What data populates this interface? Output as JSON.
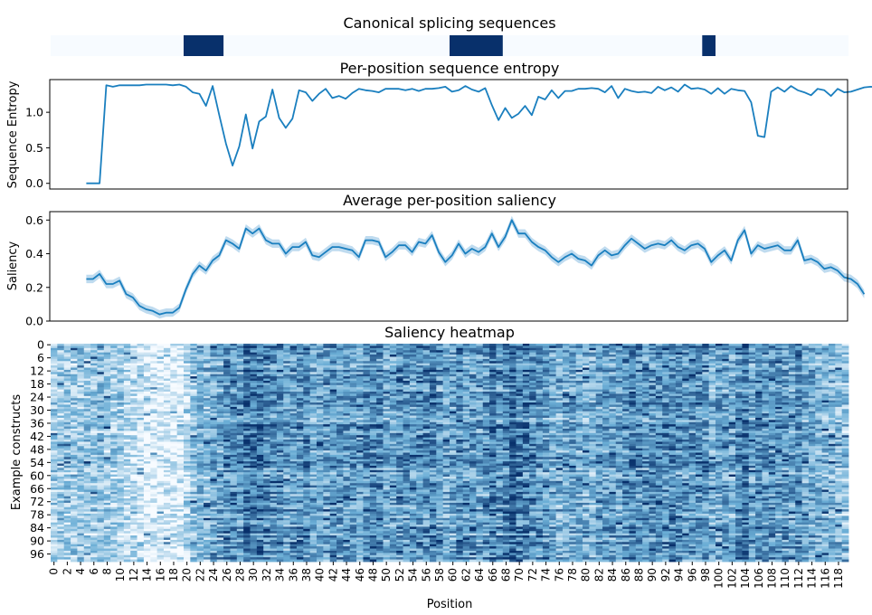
{
  "chart_data": [
    {
      "type": "heatmap",
      "title": "Canonical splicing sequences",
      "colors": {
        "on": "#08306b",
        "off": "#f7fbff"
      },
      "x_range": [
        0,
        120
      ],
      "regions": [
        {
          "start": 20,
          "end": 26
        },
        {
          "start": 60,
          "end": 68
        },
        {
          "start": 98,
          "end": 100
        }
      ]
    },
    {
      "type": "line",
      "title": "Per-position sequence entropy",
      "xlabel": "",
      "ylabel": "Sequence Entropy",
      "ylim": [
        -0.08,
        1.46
      ],
      "xlim": [
        -0.5,
        119.5
      ],
      "yticks": [
        "0.0",
        "0.5",
        "1.0"
      ],
      "line_color": "#1a7fbf",
      "series": [
        {
          "x_start": 5,
          "values": [
            0,
            0,
            0,
            1.38,
            1.36,
            1.38,
            1.38,
            1.38,
            1.38,
            1.39,
            1.39,
            1.39,
            1.39,
            1.38,
            1.39,
            1.36,
            1.28,
            1.26,
            1.09,
            1.37,
            0.96,
            0.56,
            0.25,
            0.52,
            0.97,
            0.49,
            0.87,
            0.94,
            1.32,
            0.92,
            0.78,
            0.91,
            1.31,
            1.28,
            1.16,
            1.26,
            1.33,
            1.2,
            1.23,
            1.19,
            1.27,
            1.33,
            1.31,
            1.3,
            1.28,
            1.33,
            1.33,
            1.33,
            1.31,
            1.33,
            1.3,
            1.33,
            1.33,
            1.34,
            1.36,
            1.29,
            1.31,
            1.37,
            1.32,
            1.29,
            1.34,
            1.1,
            0.89,
            1.06,
            0.92,
            0.98,
            1.09,
            0.96,
            1.22,
            1.18,
            1.31,
            1.2,
            1.3,
            1.3,
            1.33,
            1.33,
            1.34,
            1.33,
            1.28,
            1.37,
            1.2,
            1.33,
            1.3,
            1.28,
            1.29,
            1.27,
            1.36,
            1.31,
            1.35,
            1.29,
            1.39,
            1.33,
            1.34,
            1.32,
            1.26,
            1.34,
            1.26,
            1.33,
            1.31,
            1.3,
            1.14,
            0.67,
            0.65,
            1.29,
            1.35,
            1.29,
            1.37,
            1.31,
            1.28,
            1.24,
            1.33,
            1.31,
            1.23,
            1.33,
            1.28,
            1.29,
            1.32,
            1.35,
            1.36,
            1.35
          ]
        }
      ]
    },
    {
      "type": "line",
      "title": "Average per-position saliency",
      "xlabel": "",
      "ylabel": "Saliency",
      "ylim": [
        0.0,
        0.65
      ],
      "xlim": [
        -0.5,
        119.5
      ],
      "yticks": [
        "0.0",
        "0.2",
        "0.4",
        "0.6"
      ],
      "line_color": "#1a7fbf",
      "band_color": "#aacfe9",
      "band_halfwidth": 0.025,
      "series": [
        {
          "x_start": 5,
          "values": [
            0.25,
            0.25,
            0.28,
            0.22,
            0.22,
            0.24,
            0.16,
            0.14,
            0.09,
            0.07,
            0.06,
            0.04,
            0.05,
            0.05,
            0.08,
            0.19,
            0.28,
            0.33,
            0.3,
            0.36,
            0.39,
            0.48,
            0.46,
            0.43,
            0.55,
            0.52,
            0.55,
            0.48,
            0.46,
            0.46,
            0.4,
            0.44,
            0.44,
            0.47,
            0.39,
            0.38,
            0.41,
            0.44,
            0.44,
            0.43,
            0.42,
            0.38,
            0.48,
            0.48,
            0.47,
            0.38,
            0.41,
            0.45,
            0.45,
            0.41,
            0.47,
            0.46,
            0.51,
            0.41,
            0.35,
            0.39,
            0.46,
            0.4,
            0.43,
            0.41,
            0.44,
            0.52,
            0.44,
            0.5,
            0.6,
            0.52,
            0.52,
            0.47,
            0.44,
            0.42,
            0.38,
            0.35,
            0.38,
            0.4,
            0.37,
            0.36,
            0.33,
            0.39,
            0.42,
            0.39,
            0.4,
            0.45,
            0.49,
            0.46,
            0.43,
            0.45,
            0.46,
            0.45,
            0.48,
            0.44,
            0.42,
            0.45,
            0.46,
            0.43,
            0.35,
            0.39,
            0.42,
            0.36,
            0.48,
            0.54,
            0.4,
            0.45,
            0.43,
            0.44,
            0.45,
            0.42,
            0.42,
            0.48,
            0.36,
            0.37,
            0.35,
            0.31,
            0.32,
            0.3,
            0.26,
            0.25,
            0.22,
            0.16
          ]
        }
      ]
    },
    {
      "type": "heatmap",
      "title": "Saliency heatmap",
      "xlabel": "Position",
      "ylabel": "Example constructs",
      "x_range": [
        0,
        120
      ],
      "rows": 100,
      "xticks": [
        "0",
        "2",
        "4",
        "6",
        "8",
        "10",
        "12",
        "14",
        "16",
        "18",
        "20",
        "22",
        "24",
        "26",
        "28",
        "30",
        "32",
        "34",
        "36",
        "38",
        "40",
        "42",
        "44",
        "46",
        "48",
        "50",
        "52",
        "54",
        "56",
        "58",
        "60",
        "62",
        "64",
        "66",
        "68",
        "70",
        "72",
        "74",
        "76",
        "78",
        "80",
        "82",
        "84",
        "86",
        "88",
        "90",
        "92",
        "94",
        "96",
        "98",
        "100",
        "102",
        "104",
        "106",
        "108",
        "110",
        "112",
        "114",
        "116",
        "118"
      ],
      "yticks": [
        "0",
        "6",
        "12",
        "18",
        "24",
        "30",
        "36",
        "42",
        "48",
        "54",
        "60",
        "66",
        "72",
        "78",
        "84",
        "90",
        "96"
      ],
      "colors": {
        "low": "#f7fbff",
        "mid": "#6baed6",
        "high": "#08306b"
      }
    }
  ]
}
